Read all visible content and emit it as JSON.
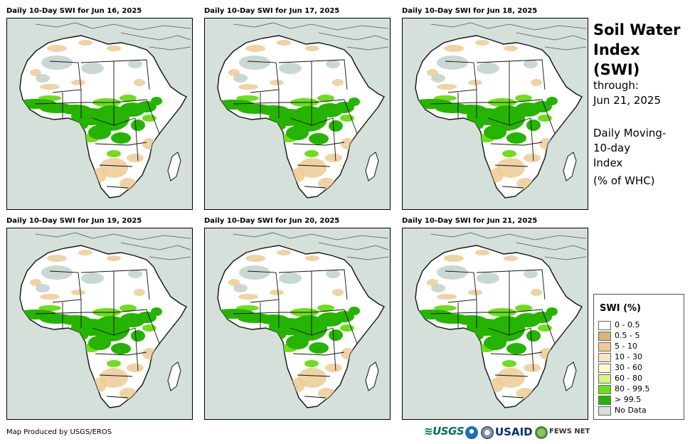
{
  "panels": [
    {
      "title": "Daily 10-Day SWI for Jun 16, 2025"
    },
    {
      "title": "Daily 10-Day SWI for Jun 17, 2025"
    },
    {
      "title": "Daily 10-Day SWI for Jun 18, 2025"
    },
    {
      "title": "Daily 10-Day SWI for Jun 19, 2025"
    },
    {
      "title": "Daily 10-Day SWI for Jun 20, 2025"
    },
    {
      "title": "Daily 10-Day SWI for Jun 21, 2025"
    }
  ],
  "side": {
    "title_line1": "Soil Water",
    "title_line2": "Index (SWI)",
    "through_label": "through:",
    "through_date": "Jun 21, 2025",
    "desc_line1": "Daily Moving-",
    "desc_line2": "10-day",
    "desc_line3": "Index",
    "desc_line4": "(% of WHC)"
  },
  "legend": {
    "title": "SWI (%)",
    "items": [
      {
        "label": "0 - 0.5",
        "color": "#ffffff"
      },
      {
        "label": "0.5 - 5",
        "color": "#d9b37c"
      },
      {
        "label": "5 - 10",
        "color": "#eccb95"
      },
      {
        "label": "10 - 30",
        "color": "#fae3c0"
      },
      {
        "label": "30 - 60",
        "color": "#fdfbd3"
      },
      {
        "label": "60 - 80",
        "color": "#d6f58a"
      },
      {
        "label": "80 - 99.5",
        "color": "#6fdc1e"
      },
      {
        "label": "> 99.5",
        "color": "#25b400"
      },
      {
        "label": "No Data",
        "color": "#d4e0d9"
      }
    ]
  },
  "footer": {
    "credit": "Map Produced by USGS/EROS",
    "logo_usgs": "≋USGS",
    "logo_usaid": "USAID",
    "logo_fews": "FEWS NET"
  },
  "colors": {
    "ocean": "#d4e0d9",
    "land_dry": "#ffffff",
    "no_data": "#c9d8d2",
    "wet_green": "#25b400",
    "moist_green": "#6fdc1e",
    "tan": "#eccb95"
  }
}
